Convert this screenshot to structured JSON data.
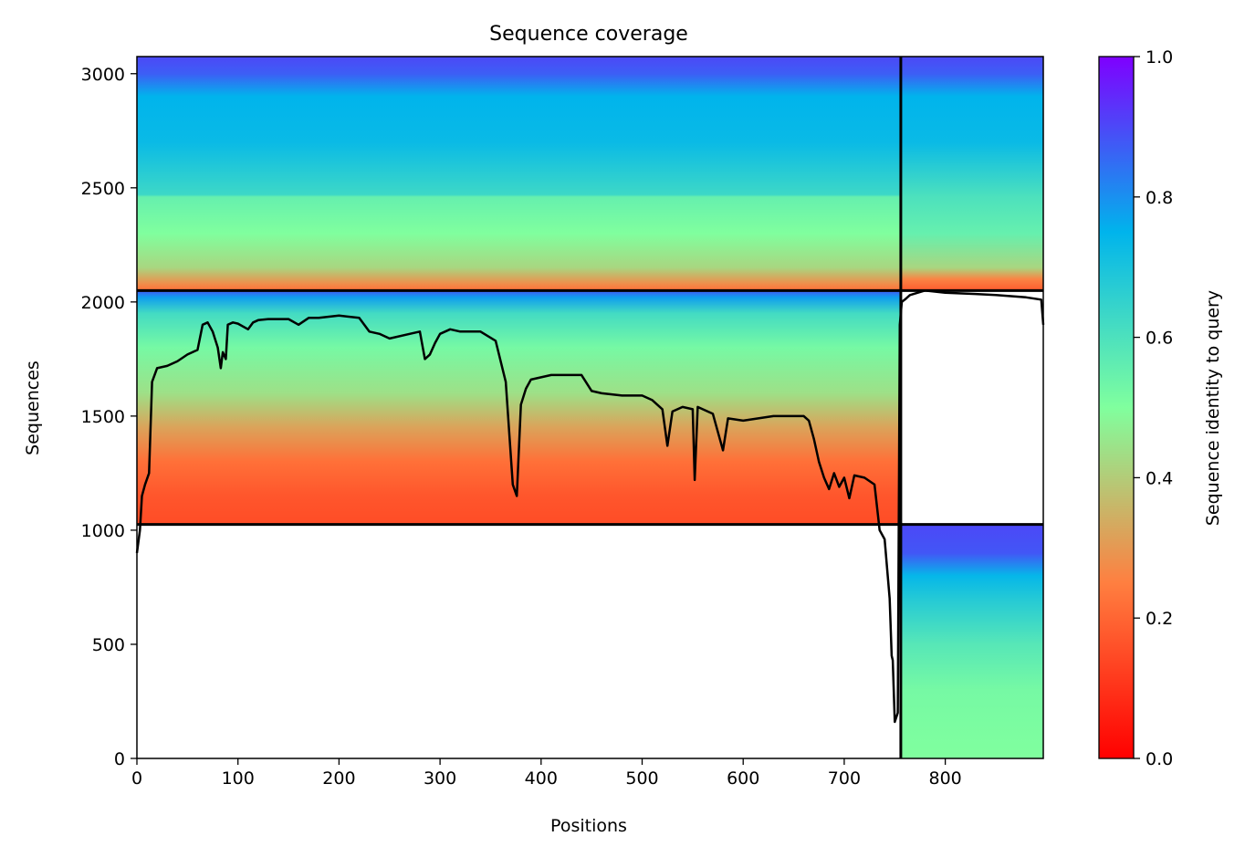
{
  "chart_data": {
    "type": "heatmap",
    "title": "Sequence coverage",
    "xlabel": "Positions",
    "ylabel": "Sequences",
    "colorbar_label": "Sequence identity to query",
    "xlim": [
      0,
      897
    ],
    "ylim": [
      0,
      3075
    ],
    "x_ticks": [
      0,
      100,
      200,
      300,
      400,
      500,
      600,
      700,
      800
    ],
    "y_ticks": [
      0,
      500,
      1000,
      1500,
      2000,
      2500,
      3000
    ],
    "colorbar_range": [
      0.0,
      1.0
    ],
    "colorbar_ticks": [
      "0.0",
      "0.2",
      "0.4",
      "0.6",
      "0.8",
      "1.0"
    ],
    "colormap": [
      "#ff0000",
      "#ff7f40",
      "#80ff9e",
      "#00b4ec",
      "#7f00ff"
    ],
    "block_boundaries": {
      "vertical_x": 756,
      "horizontal_y": [
        1025,
        2050
      ]
    },
    "coverage_blocks": [
      {
        "x_range": [
          0,
          756
        ],
        "y_range": [
          2050,
          3075
        ],
        "identity_stops": [
          {
            "y": 2050,
            "identity": 0.22
          },
          {
            "y": 2080,
            "identity": 0.28
          },
          {
            "y": 2150,
            "identity": 0.42
          },
          {
            "y": 2300,
            "identity": 0.5
          },
          {
            "y": 2460,
            "identity": 0.55
          },
          {
            "y": 2470,
            "identity": 0.63
          },
          {
            "y": 2700,
            "identity": 0.73
          },
          {
            "y": 2900,
            "identity": 0.75
          },
          {
            "y": 3000,
            "identity": 0.87
          },
          {
            "y": 3075,
            "identity": 0.9
          }
        ]
      },
      {
        "x_range": [
          0,
          756
        ],
        "y_range": [
          1025,
          2050
        ],
        "identity_stops": [
          {
            "y": 1025,
            "identity": 0.15
          },
          {
            "y": 1150,
            "identity": 0.17
          },
          {
            "y": 1300,
            "identity": 0.22
          },
          {
            "y": 1450,
            "identity": 0.32
          },
          {
            "y": 1600,
            "identity": 0.44
          },
          {
            "y": 1800,
            "identity": 0.52
          },
          {
            "y": 1950,
            "identity": 0.62
          },
          {
            "y": 2020,
            "identity": 0.78
          },
          {
            "y": 2050,
            "identity": 0.88
          }
        ]
      },
      {
        "x_range": [
          756,
          897
        ],
        "y_range": [
          2050,
          3075
        ],
        "identity_stops": [
          {
            "y": 2050,
            "identity": 0.18
          },
          {
            "y": 2100,
            "identity": 0.26
          },
          {
            "y": 2150,
            "identity": 0.42
          },
          {
            "y": 2300,
            "identity": 0.55
          },
          {
            "y": 2460,
            "identity": 0.6
          },
          {
            "y": 2700,
            "identity": 0.73
          },
          {
            "y": 2900,
            "identity": 0.75
          },
          {
            "y": 3000,
            "identity": 0.87
          },
          {
            "y": 3075,
            "identity": 0.9
          }
        ]
      },
      {
        "x_range": [
          756,
          897
        ],
        "y_range": [
          0,
          1025
        ],
        "identity_stops": [
          {
            "y": 0,
            "identity": 0.5
          },
          {
            "y": 300,
            "identity": 0.52
          },
          {
            "y": 500,
            "identity": 0.58
          },
          {
            "y": 700,
            "identity": 0.68
          },
          {
            "y": 800,
            "identity": 0.74
          },
          {
            "y": 900,
            "identity": 0.88
          },
          {
            "y": 1025,
            "identity": 0.9
          }
        ]
      }
    ],
    "coverage_line": {
      "x": [
        0,
        3,
        5,
        8,
        12,
        15,
        20,
        30,
        40,
        50,
        60,
        65,
        70,
        75,
        80,
        83,
        85,
        88,
        90,
        95,
        100,
        110,
        115,
        120,
        130,
        150,
        160,
        170,
        180,
        200,
        220,
        230,
        240,
        250,
        270,
        280,
        285,
        290,
        295,
        300,
        310,
        320,
        340,
        355,
        365,
        372,
        376,
        380,
        385,
        390,
        400,
        410,
        420,
        440,
        450,
        460,
        480,
        500,
        510,
        520,
        525,
        530,
        540,
        550,
        552,
        555,
        560,
        570,
        580,
        585,
        600,
        630,
        660,
        665,
        670,
        675,
        680,
        685,
        690,
        695,
        700,
        705,
        710,
        720,
        730,
        735,
        740,
        745,
        747,
        748,
        750,
        753,
        755,
        757,
        760,
        765,
        780,
        800,
        830,
        850,
        880,
        895,
        897
      ],
      "y": [
        900,
        1000,
        1150,
        1200,
        1250,
        1650,
        1710,
        1720,
        1740,
        1770,
        1790,
        1900,
        1910,
        1870,
        1800,
        1710,
        1780,
        1750,
        1900,
        1910,
        1905,
        1880,
        1910,
        1920,
        1925,
        1925,
        1900,
        1930,
        1930,
        1940,
        1930,
        1870,
        1860,
        1840,
        1860,
        1870,
        1750,
        1770,
        1820,
        1860,
        1880,
        1870,
        1870,
        1830,
        1650,
        1200,
        1150,
        1550,
        1620,
        1660,
        1670,
        1680,
        1680,
        1680,
        1610,
        1600,
        1590,
        1590,
        1570,
        1530,
        1370,
        1520,
        1540,
        1530,
        1220,
        1540,
        1530,
        1510,
        1350,
        1490,
        1480,
        1500,
        1500,
        1480,
        1400,
        1300,
        1230,
        1180,
        1250,
        1190,
        1230,
        1140,
        1240,
        1230,
        1200,
        1000,
        960,
        700,
        450,
        430,
        160,
        200,
        1900,
        2000,
        2010,
        2030,
        2050,
        2040,
        2035,
        2030,
        2020,
        2010,
        1900
      ]
    }
  }
}
